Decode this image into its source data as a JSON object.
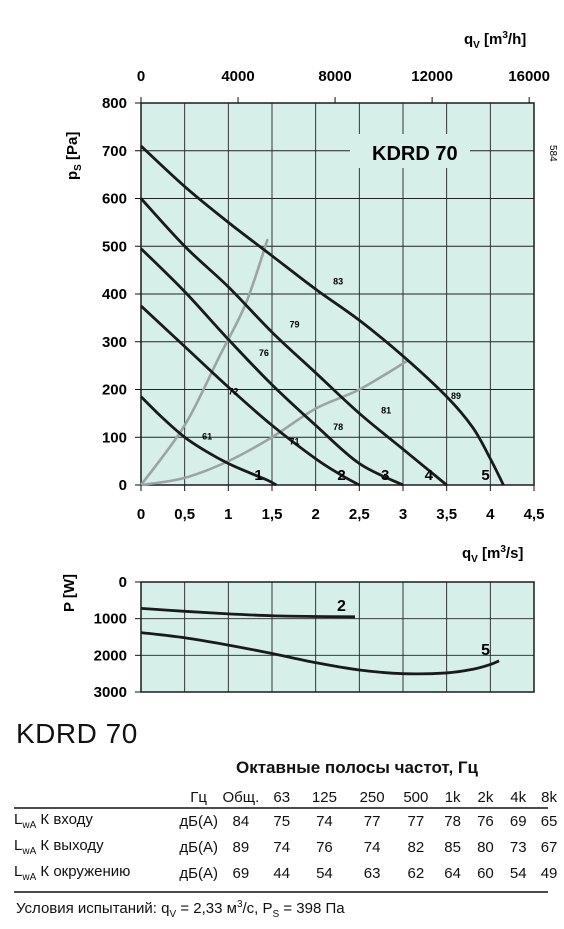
{
  "chart_data": [
    {
      "type": "line",
      "title": "KDRD 70",
      "side_label": "584",
      "xlabel": "q_V [m³/s]",
      "ylabel": "p_S [Pa]",
      "x_top_label": "q_V [m³/h]",
      "xlim": [
        0,
        4.5
      ],
      "ylim": [
        0,
        800
      ],
      "xticks": [
        "0",
        "0,5",
        "1",
        "1,5",
        "2",
        "2,5",
        "3",
        "3,5",
        "4",
        "4,5"
      ],
      "yticks": [
        "0",
        "100",
        "200",
        "300",
        "400",
        "500",
        "600",
        "700",
        "800"
      ],
      "x_top_ticks": [
        "0",
        "4000",
        "8000",
        "12000",
        "16000"
      ],
      "grid": true,
      "series": [
        {
          "name": "1",
          "x": [
            0,
            0.25,
            0.5,
            0.75,
            1.0,
            1.25,
            1.45,
            1.55
          ],
          "y": [
            185,
            140,
            100,
            70,
            45,
            25,
            10,
            0
          ]
        },
        {
          "name": "2",
          "x": [
            0,
            0.5,
            1.0,
            1.5,
            2.0,
            2.3,
            2.5
          ],
          "y": [
            375,
            290,
            205,
            125,
            55,
            20,
            0
          ]
        },
        {
          "name": "3",
          "x": [
            0,
            0.5,
            1.0,
            1.5,
            2.0,
            2.5,
            3.0
          ],
          "y": [
            495,
            405,
            305,
            210,
            125,
            45,
            0
          ]
        },
        {
          "name": "4",
          "x": [
            0,
            0.5,
            1.0,
            1.5,
            2.0,
            2.5,
            3.0,
            3.3,
            3.5
          ],
          "y": [
            600,
            500,
            415,
            320,
            235,
            150,
            75,
            30,
            0
          ]
        },
        {
          "name": "5",
          "x": [
            0,
            0.5,
            1.0,
            1.5,
            2.0,
            2.5,
            3.0,
            3.5,
            3.8,
            4.0,
            4.15
          ],
          "y": [
            710,
            625,
            550,
            480,
            410,
            345,
            270,
            185,
            120,
            55,
            0
          ]
        }
      ],
      "system_curves": [
        {
          "x": [
            0,
            0.5,
            0.9,
            1.2,
            1.45
          ],
          "y": [
            0,
            125,
            270,
            380,
            515
          ]
        },
        {
          "x": [
            0,
            0.5,
            1.0,
            1.5,
            2.0,
            2.5,
            3.05
          ],
          "y": [
            0,
            15,
            50,
            100,
            160,
            200,
            260
          ]
        }
      ],
      "sound_levels": [
        "61",
        "72",
        "76",
        "79",
        "83",
        "71",
        "78",
        "81",
        "89"
      ]
    },
    {
      "type": "line",
      "ylabel": "P [W]",
      "xlabel": "",
      "xlim": [
        0,
        4.5
      ],
      "ylim": [
        0,
        3000
      ],
      "y_inverted": true,
      "yticks": [
        "0",
        "1000",
        "2000",
        "3000"
      ],
      "grid": true,
      "series": [
        {
          "name": "2",
          "x": [
            0,
            0.5,
            1.0,
            1.5,
            2.0,
            2.45
          ],
          "y": [
            720,
            800,
            870,
            920,
            940,
            950
          ]
        },
        {
          "name": "5",
          "x": [
            0,
            0.5,
            1.0,
            1.5,
            2.0,
            2.5,
            3.0,
            3.5,
            3.8,
            4.0,
            4.1
          ],
          "y": [
            1380,
            1520,
            1720,
            1950,
            2200,
            2400,
            2500,
            2480,
            2380,
            2250,
            2150
          ]
        }
      ]
    }
  ],
  "model": "KDRD 70",
  "noise_table": {
    "caption": "Октавные полосы частот, Гц",
    "header": [
      "Гц",
      "Общ.",
      "63",
      "125",
      "250",
      "500",
      "1k",
      "2k",
      "4k",
      "8k"
    ],
    "rows": [
      {
        "label_main": "L",
        "label_sub": "wA",
        "label_rest": " К входу",
        "unit": "дБ(А)",
        "values": [
          "84",
          "75",
          "74",
          "77",
          "77",
          "78",
          "76",
          "69",
          "65"
        ]
      },
      {
        "label_main": "L",
        "label_sub": "wA",
        "label_rest": " К выходу",
        "unit": "дБ(А)",
        "values": [
          "89",
          "74",
          "76",
          "74",
          "82",
          "85",
          "80",
          "73",
          "67"
        ]
      },
      {
        "label_main": "L",
        "label_sub": "wA",
        "label_rest": " К окружению",
        "unit": "дБ(А)",
        "values": [
          "69",
          "44",
          "54",
          "63",
          "62",
          "64",
          "60",
          "54",
          "49"
        ]
      }
    ]
  },
  "conditions": {
    "prefix": "Условия испытаний: q",
    "qv_sub": "V",
    "qv_value": " = 2,33 м",
    "qv_sup": "3",
    "qv_unit": "/с, P",
    "ps_sub": "S",
    "ps_value": " = 398 Па"
  },
  "colors": {
    "plot_bg": "#d6efe9",
    "curve": "#1a1a1a",
    "system_curve": "#9aa5a3",
    "grid": "#222222"
  }
}
